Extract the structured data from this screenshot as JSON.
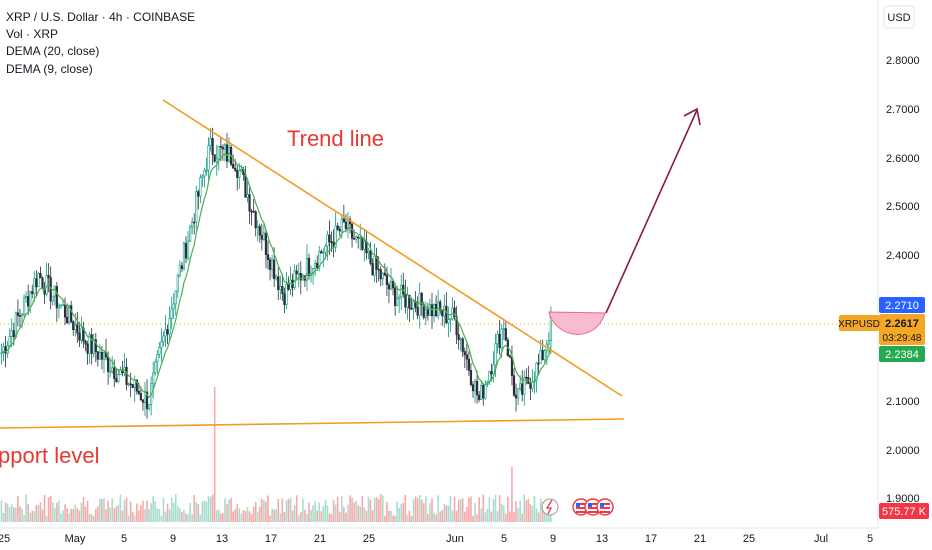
{
  "header": {
    "title": "XRP / U.S. Dollar · 4h · COINBASE",
    "indicators": [
      "Vol · XRP",
      "DEMA (20, close)",
      "DEMA (9, close)"
    ]
  },
  "currency_button": "USD",
  "annotations": {
    "trend_line": "Trend line",
    "support_level": "pport level"
  },
  "price_axis": {
    "ticks": [
      "2.8000",
      "2.7000",
      "2.6000",
      "2.5000",
      "2.4000",
      "2.1000",
      "2.0000",
      "1.9000"
    ]
  },
  "price_badges": {
    "upper": "2.2710",
    "current": "2.2617",
    "countdown": "03:29:48",
    "lower": "2.2384",
    "volume": "575.77 K",
    "symbol": "XRPUSD"
  },
  "time_axis": {
    "ticks": [
      "25",
      "May",
      "5",
      "9",
      "13",
      "17",
      "21",
      "25",
      "Jun",
      "5",
      "9",
      "13",
      "17",
      "21",
      "25",
      "Jul",
      "5"
    ]
  },
  "colors": {
    "up": "#089981",
    "down": "#2a2e39",
    "trend": "#f59a23",
    "dema_fast": "#4caf50",
    "projection": "#8b1a3c",
    "cup": "#f8bbd0",
    "text_red": "#e53935",
    "badge_orange": "#f5a623",
    "badge_blue": "#2962ff",
    "badge_green": "#22ab50",
    "badge_red": "#f23645"
  },
  "chart_data": {
    "type": "candlestick",
    "symbol": "XRPUSD",
    "timeframe": "4h",
    "y_range": [
      1.88,
      2.9
    ],
    "key_points": [
      {
        "date": "Apr 25",
        "price": 2.2
      },
      {
        "date": "Apr 28",
        "price": 2.36
      },
      {
        "date": "May 2",
        "price": 2.22
      },
      {
        "date": "May 7",
        "price": 2.1
      },
      {
        "date": "May 12",
        "price": 2.62
      },
      {
        "date": "May 14",
        "price": 2.6
      },
      {
        "date": "May 18",
        "price": 2.32
      },
      {
        "date": "May 23",
        "price": 2.46
      },
      {
        "date": "May 27",
        "price": 2.32
      },
      {
        "date": "Jun 1",
        "price": 2.27
      },
      {
        "date": "Jun 3",
        "price": 2.1
      },
      {
        "date": "Jun 5",
        "price": 2.26
      },
      {
        "date": "Jun 6",
        "price": 2.1
      },
      {
        "date": "Jun 8",
        "price": 2.18
      },
      {
        "date": "Jun 9",
        "price": 2.27
      }
    ],
    "last_price": 2.2617
  }
}
